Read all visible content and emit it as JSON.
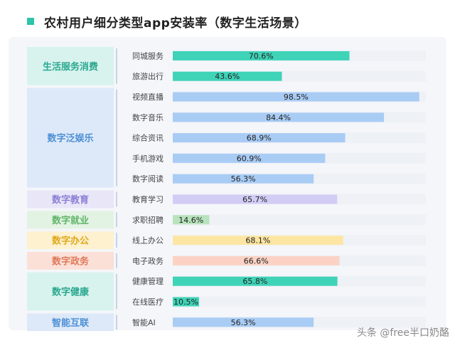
{
  "title": "农村用户细分类型app安装率（数字生活场景）",
  "footer_text": "头条 @free半口奶酪",
  "colors": {
    "accent": "#2ec4a9"
  },
  "chart_data": {
    "type": "bar",
    "orientation": "horizontal",
    "xlim": [
      0,
      100
    ],
    "groups": [
      {
        "name": "生活服务消费",
        "bg_color": "#d8f3ee",
        "text_color": "#2aa890",
        "bar_color": "#3fd3b8",
        "items": [
          {
            "label": "同城服务",
            "value": 70.6,
            "value_label": "70.6%"
          },
          {
            "label": "旅游出行",
            "value": 43.6,
            "value_label": "43.6%"
          }
        ]
      },
      {
        "name": "数字泛娱乐",
        "bg_color": "#dde9f8",
        "text_color": "#4d8fd6",
        "bar_color": "#a9ccf5",
        "items": [
          {
            "label": "视频直播",
            "value": 98.5,
            "value_label": "98.5%"
          },
          {
            "label": "数字音乐",
            "value": 84.4,
            "value_label": "84.4%"
          },
          {
            "label": "综合资讯",
            "value": 68.9,
            "value_label": "68.9%"
          },
          {
            "label": "手机游戏",
            "value": 60.9,
            "value_label": "60.9%"
          },
          {
            "label": "数字阅读",
            "value": 56.3,
            "value_label": "56.3%"
          }
        ]
      },
      {
        "name": "数字教育",
        "bg_color": "#e9e6f8",
        "text_color": "#8a7fd6",
        "bar_color": "#d2ccf5",
        "items": [
          {
            "label": "教育学习",
            "value": 65.7,
            "value_label": "65.7%"
          }
        ]
      },
      {
        "name": "数字就业",
        "bg_color": "#e3f3e3",
        "text_color": "#5fb56a",
        "bar_color": "#b8e3bd",
        "items": [
          {
            "label": "求职招聘",
            "value": 14.6,
            "value_label": "14.6%"
          }
        ]
      },
      {
        "name": "数字办公",
        "bg_color": "#fdf1cf",
        "text_color": "#e0a91c",
        "bar_color": "#fde6a3",
        "items": [
          {
            "label": "线上办公",
            "value": 68.1,
            "value_label": "68.1%"
          }
        ]
      },
      {
        "name": "数字政务",
        "bg_color": "#fbe0d8",
        "text_color": "#e07a5a",
        "bar_color": "#fbd2c4",
        "items": [
          {
            "label": "电子政务",
            "value": 66.6,
            "value_label": "66.6%"
          }
        ]
      },
      {
        "name": "数字健康",
        "bg_color": "#d8f3ee",
        "text_color": "#2aa890",
        "bar_color": "#3fd3b8",
        "items": [
          {
            "label": "健康管理",
            "value": 65.8,
            "value_label": "65.8%"
          },
          {
            "label": "在线医疗",
            "value": 10.5,
            "value_label": "10.5%"
          }
        ]
      },
      {
        "name": "智能互联",
        "bg_color": "#dde9f8",
        "text_color": "#4d8fd6",
        "bar_color": "#a9ccf5",
        "items": [
          {
            "label": "智能AI",
            "value": 56.3,
            "value_label": "56.3%"
          }
        ]
      }
    ]
  }
}
